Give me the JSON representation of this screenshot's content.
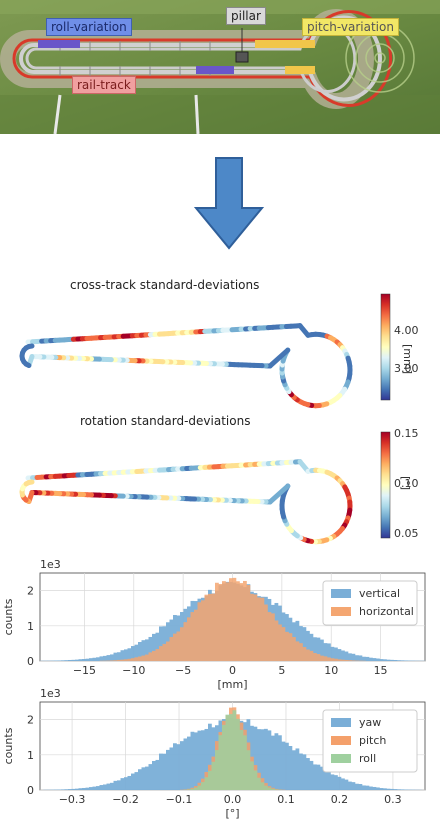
{
  "photo": {
    "labels": {
      "roll": "roll-variation",
      "pillar": "pillar",
      "pitch": "pitch-variation",
      "rail": "rail-track"
    },
    "colors": {
      "roll_bg": "#6f8ee8",
      "pillar_bg": "#d9d9d9",
      "pitch_bg": "#f2e766",
      "rail_bg": "#f0a0a0",
      "grass": "#6f8e45",
      "track_red": "#d83a2a",
      "rail_silver": "#c8c8c8",
      "segment_blue": "#6a56c9",
      "segment_yellow": "#f1c64a"
    }
  },
  "arrow": {
    "color": "#4d88c8",
    "icon": "down-arrow-icon"
  },
  "maps": [
    {
      "title": "cross-track standard-deviations",
      "colorbar": {
        "ticks": [
          "4.00",
          "3.00"
        ],
        "unit": "[mm]"
      }
    },
    {
      "title": "rotation standard-deviations",
      "colorbar": {
        "ticks": [
          "0.15",
          "0.10",
          "0.05"
        ],
        "unit": "[°]"
      }
    }
  ],
  "chart_data": [
    {
      "type": "histogram",
      "multiplier": "1e3",
      "ylabel": "counts",
      "xlabel": "[mm]",
      "yticks": [
        "0",
        "1",
        "2"
      ],
      "xticks": [
        "−15",
        "−10",
        "−5",
        "0",
        "5",
        "10",
        "15"
      ],
      "xlim": [
        -19.5,
        19.5
      ],
      "ylim": [
        0,
        2.5
      ],
      "series": [
        {
          "name": "vertical",
          "color": "#7aaed7",
          "shape": "normal",
          "center": 0,
          "sigma": 5.6,
          "peak": 2.15
        },
        {
          "name": "horizontal",
          "color": "#f4a671",
          "shape": "normal",
          "center": 0,
          "sigma": 3.9,
          "peak": 2.3
        }
      ],
      "legend": "top-right",
      "grid": true
    },
    {
      "type": "histogram",
      "multiplier": "1e3",
      "ylabel": "counts",
      "xlabel": "[°]",
      "yticks": [
        "0",
        "1",
        "2"
      ],
      "xticks": [
        "−0.3",
        "−0.2",
        "−0.1",
        "0.0",
        "0.1",
        "0.2",
        "0.3"
      ],
      "xlim": [
        -0.36,
        0.36
      ],
      "ylim": [
        0,
        2.5
      ],
      "series": [
        {
          "name": "yaw",
          "color": "#7aaed7",
          "shape": "bimodal",
          "center": 0,
          "sigma": 0.11,
          "peak": 2.25
        },
        {
          "name": "pitch",
          "color": "#f4a06b",
          "shape": "normal",
          "center": 0,
          "sigma": 0.028,
          "peak": 2.3
        },
        {
          "name": "roll",
          "color": "#9fd09f",
          "shape": "normal",
          "center": 0,
          "sigma": 0.026,
          "peak": 2.2
        }
      ],
      "legend": "top-right",
      "grid": true
    }
  ]
}
